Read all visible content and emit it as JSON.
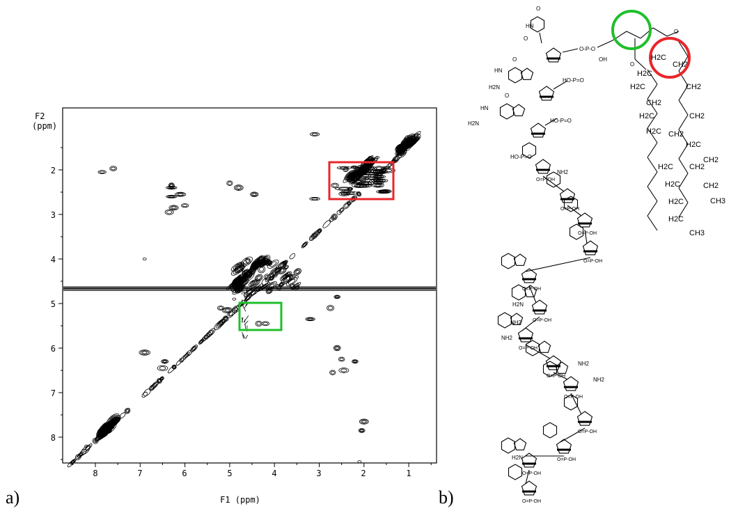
{
  "panel_a": {
    "label": "a)",
    "f2_label_line1": "F2",
    "f2_label_line2": "(ppm)",
    "f1_label": "F1 (ppm)",
    "x_ticks": [
      "8",
      "7",
      "6",
      "5",
      "4",
      "3",
      "2",
      "1"
    ],
    "y_ticks": [
      "2",
      "3",
      "4",
      "5",
      "6",
      "7",
      "8"
    ],
    "highlight_colors": {
      "red_box": "#e8262b",
      "green_box": "#1fbf2a"
    }
  },
  "panel_b": {
    "label": "b)",
    "lipid_labels": [
      "H2C",
      "CH2",
      "H2C",
      "CH2",
      "H2C",
      "CH2",
      "H2C",
      "CH2",
      "H2C",
      "CH2",
      "H2C",
      "CH2",
      "H2C",
      "CH2",
      "H2C",
      "CH2",
      "H2C",
      "CH3",
      "H2C",
      "CH3"
    ],
    "phosphate_label": "O-P-O",
    "oh_label": "OH",
    "nh2_label": "NH2",
    "highlight_colors": {
      "green_circle": "#1fbf2a",
      "red_circle": "#e8262b"
    }
  }
}
